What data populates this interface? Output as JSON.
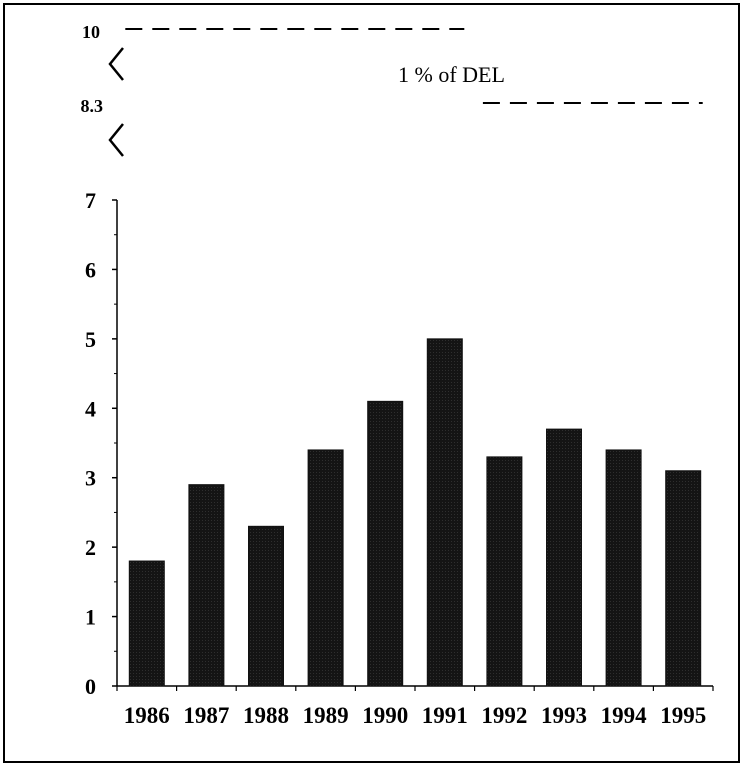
{
  "chart_data": {
    "type": "bar",
    "categories": [
      "1986",
      "1987",
      "1988",
      "1989",
      "1990",
      "1991",
      "1992",
      "1993",
      "1994",
      "1995"
    ],
    "values": [
      1.8,
      2.9,
      2.3,
      3.4,
      4.1,
      5.0,
      3.3,
      3.7,
      3.4,
      3.1
    ],
    "title": "",
    "xlabel": "",
    "ylabel": "",
    "ylim": [
      0,
      7
    ],
    "yticks": [
      0,
      1,
      2,
      3,
      4,
      5,
      6,
      7
    ],
    "axis_break": true,
    "break_labels": [
      "10",
      "8.3"
    ],
    "reference_lines": [
      {
        "value": 10,
        "years": [
          "1986",
          "1991"
        ],
        "style": "dashed"
      },
      {
        "value": 8.3,
        "years": [
          "1992",
          "1995"
        ],
        "style": "dashed"
      }
    ],
    "annotation": "1 % of DEL",
    "grid": false,
    "legend": "none",
    "bar_color": "#111111"
  }
}
